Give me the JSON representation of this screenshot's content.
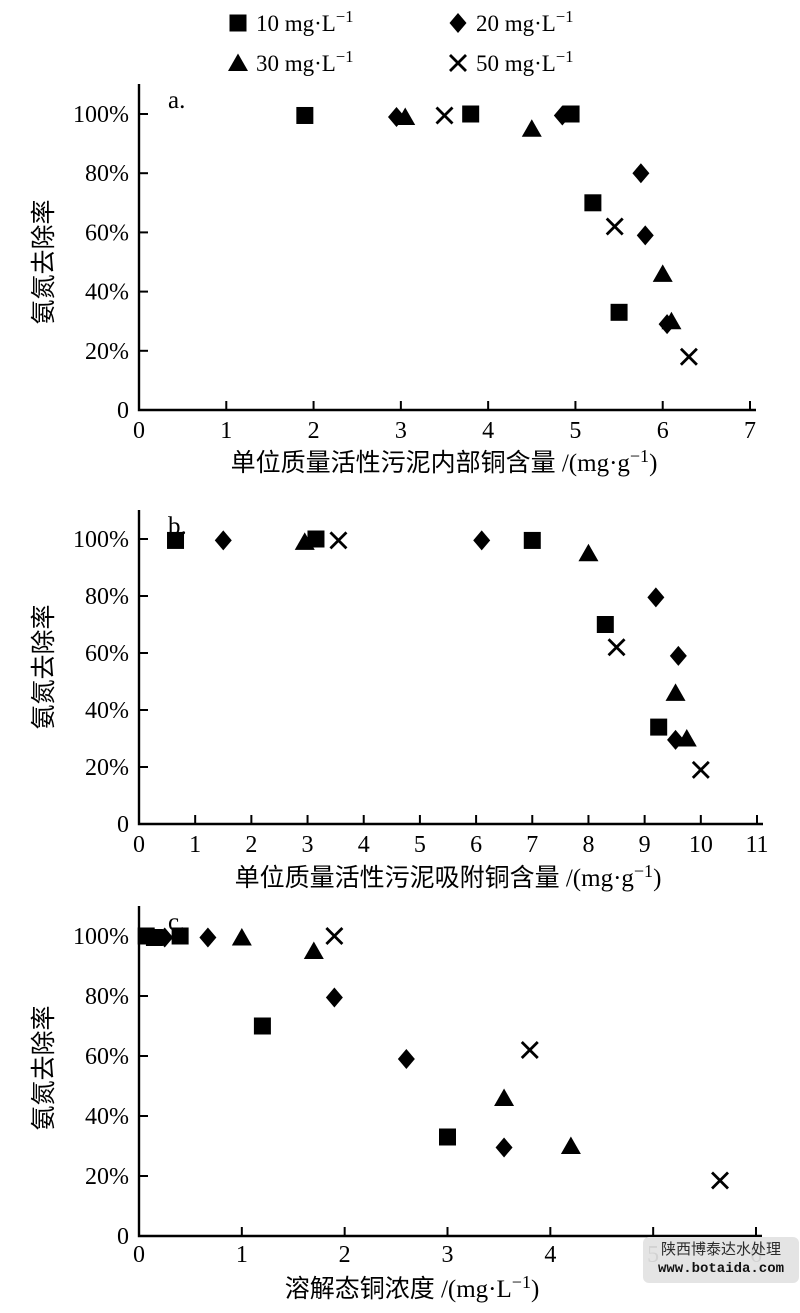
{
  "figure": {
    "background": "#ffffff",
    "marker_color": "#000000",
    "axis_color": "#000000"
  },
  "legend": {
    "position": "top",
    "items": [
      {
        "symbol": "square",
        "label": "10 mg·L⁻¹"
      },
      {
        "symbol": "diamond",
        "label": "20 mg·L⁻¹"
      },
      {
        "symbol": "triangle",
        "label": "30 mg·L⁻¹"
      },
      {
        "symbol": "cross",
        "label": "50 mg·L⁻¹"
      }
    ]
  },
  "watermark": {
    "line1": "陕西博泰达水处理",
    "line2": "www.botaida.com"
  },
  "chart_data": [
    {
      "type": "scatter",
      "panel_label": "a.",
      "xlabel": "单位质量活性污泥内部铜含量 /(mg·g⁻¹)",
      "ylabel": "氨氮去除率",
      "xlim": [
        0,
        7
      ],
      "xticks": [
        0,
        1,
        2,
        3,
        4,
        5,
        6,
        7
      ],
      "ylim": [
        0,
        110
      ],
      "yticks": [
        0,
        20,
        40,
        60,
        80,
        100
      ],
      "ytick_labels": [
        "0",
        "20%",
        "40%",
        "60%",
        "80%",
        "100%"
      ],
      "grid": false,
      "series": [
        {
          "name": "10 mg·L⁻¹",
          "symbol": "square",
          "points": [
            [
              1.9,
              99.5
            ],
            [
              3.8,
              100
            ],
            [
              4.95,
              100
            ],
            [
              5.2,
              70
            ],
            [
              5.5,
              33
            ]
          ]
        },
        {
          "name": "20 mg·L⁻¹",
          "symbol": "diamond",
          "points": [
            [
              2.95,
              99
            ],
            [
              4.85,
              99.5
            ],
            [
              5.75,
              80
            ],
            [
              5.8,
              59
            ],
            [
              6.05,
              29
            ]
          ]
        },
        {
          "name": "30 mg·L⁻¹",
          "symbol": "triangle",
          "points": [
            [
              3.05,
              99
            ],
            [
              4.5,
              95
            ],
            [
              6.0,
              46
            ],
            [
              6.1,
              30
            ]
          ]
        },
        {
          "name": "50 mg·L⁻¹",
          "symbol": "cross",
          "points": [
            [
              3.5,
              99.5
            ],
            [
              5.45,
              62
            ],
            [
              6.3,
              18
            ]
          ]
        }
      ]
    },
    {
      "type": "scatter",
      "panel_label": "b.",
      "xlabel": "单位质量活性污泥吸附铜含量 /(mg·g⁻¹)",
      "ylabel": "氨氮去除率",
      "xlim": [
        0,
        11
      ],
      "xticks": [
        0,
        1,
        2,
        3,
        4,
        5,
        6,
        7,
        8,
        9,
        10,
        11
      ],
      "ylim": [
        0,
        110
      ],
      "yticks": [
        0,
        20,
        40,
        60,
        80,
        100
      ],
      "ytick_labels": [
        "0",
        "20%",
        "40%",
        "60%",
        "80%",
        "100%"
      ],
      "grid": false,
      "series": [
        {
          "name": "10 mg·L⁻¹",
          "symbol": "square",
          "points": [
            [
              0.65,
              99.5
            ],
            [
              3.15,
              100
            ],
            [
              7.0,
              99.5
            ],
            [
              8.3,
              70
            ],
            [
              9.25,
              34
            ]
          ]
        },
        {
          "name": "20 mg·L⁻¹",
          "symbol": "diamond",
          "points": [
            [
              1.5,
              99.5
            ],
            [
              6.1,
              99.5
            ],
            [
              9.2,
              79.5
            ],
            [
              9.6,
              59
            ],
            [
              9.55,
              29.5
            ]
          ]
        },
        {
          "name": "30 mg·L⁻¹",
          "symbol": "triangle",
          "points": [
            [
              2.95,
              99
            ],
            [
              8.0,
              95
            ],
            [
              9.55,
              46
            ],
            [
              9.75,
              30
            ]
          ]
        },
        {
          "name": "50 mg·L⁻¹",
          "symbol": "cross",
          "points": [
            [
              3.55,
              99.5
            ],
            [
              8.5,
              62
            ],
            [
              10.0,
              19
            ]
          ]
        }
      ]
    },
    {
      "type": "scatter",
      "panel_label": "c.",
      "xlabel": "溶解态铜浓度 /(mg·L⁻¹)",
      "ylabel": "氨氮去除率",
      "xlim": [
        0,
        6
      ],
      "xticks": [
        0,
        1,
        2,
        3,
        4,
        5,
        6
      ],
      "ylim": [
        0,
        110
      ],
      "yticks": [
        0,
        20,
        40,
        60,
        80,
        100
      ],
      "ytick_labels": [
        "0",
        "20%",
        "40%",
        "60%",
        "80%",
        "100%"
      ],
      "grid": false,
      "series": [
        {
          "name": "10 mg·L⁻¹",
          "symbol": "square",
          "points": [
            [
              0.07,
              100
            ],
            [
              0.15,
              99.5
            ],
            [
              0.4,
              100
            ],
            [
              1.2,
              70
            ],
            [
              3.0,
              33
            ]
          ]
        },
        {
          "name": "20 mg·L⁻¹",
          "symbol": "diamond",
          "points": [
            [
              0.25,
              99.5
            ],
            [
              0.67,
              99.5
            ],
            [
              1.9,
              79.5
            ],
            [
              2.6,
              59
            ],
            [
              3.55,
              29.5
            ]
          ]
        },
        {
          "name": "30 mg·L⁻¹",
          "symbol": "triangle",
          "points": [
            [
              1.0,
              99.5
            ],
            [
              1.7,
              95
            ],
            [
              3.55,
              46
            ],
            [
              4.2,
              30
            ]
          ]
        },
        {
          "name": "50 mg·L⁻¹",
          "symbol": "cross",
          "points": [
            [
              1.9,
              100
            ],
            [
              3.8,
              62
            ],
            [
              5.65,
              18.5
            ]
          ]
        }
      ]
    }
  ]
}
